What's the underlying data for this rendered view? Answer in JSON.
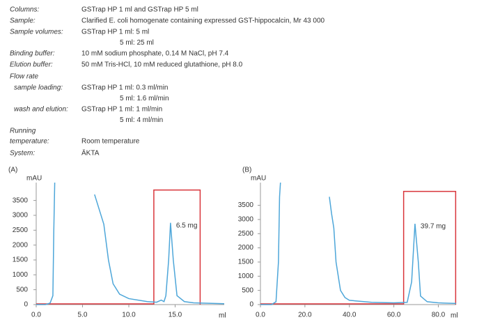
{
  "method": [
    {
      "label": "Columns:",
      "values": [
        "GSTrap HP 1 ml and GSTrap HP 5 ml"
      ]
    },
    {
      "label": "Sample:",
      "values": [
        "Clarified E. coli homogenate containing expressed GST-hippocalcin, Mr 43 000"
      ]
    },
    {
      "label": "Sample volumes:",
      "values": [
        "GSTrap HP 1 ml: 5 ml",
        "5 ml: 25 ml"
      ]
    },
    {
      "label": "Binding buffer:",
      "values": [
        "10 mM sodium phosphate, 0.14 M NaCl, pH 7.4"
      ]
    },
    {
      "label": "Elution buffer:",
      "values": [
        "50 mM Tris-HCl, 10 mM reduced glutathione, pH 8.0"
      ]
    },
    {
      "label": "Flow rate",
      "values": []
    },
    {
      "label": "sample loading:",
      "values": [
        "GSTrap HP 1 ml: 0.3 ml/min",
        "5 ml: 1.6 ml/min"
      ]
    },
    {
      "label": "wash and elution:",
      "values": [
        "GSTrap HP 1 ml: 1 ml/min",
        "5 ml: 4 ml/min"
      ]
    },
    {
      "label": "Running",
      "values": []
    },
    {
      "label": "temperature:",
      "values": [
        "Room temperature"
      ]
    },
    {
      "label": "System:",
      "values": [
        "ÄKTA"
      ]
    }
  ],
  "chart_data": [
    {
      "type": "line",
      "panel": "(A)",
      "y_label": "mAU",
      "x_label": "ml",
      "x": [
        0,
        1,
        1.5,
        1.8,
        1.9,
        2.0,
        5.9,
        6.3,
        7.0,
        7.3,
        7.8,
        8.3,
        9,
        10,
        12,
        13,
        13.5,
        13.8,
        14.0,
        14.3,
        14.5,
        14.8,
        15.2,
        16,
        17,
        20.3
      ],
      "series": [
        {
          "color": "#4da6d9",
          "values": [
            0,
            0,
            50,
            300,
            2500,
            4100,
            null,
            3700,
            3000,
            2700,
            1500,
            700,
            350,
            200,
            100,
            80,
            150,
            100,
            300,
            1500,
            2750,
            1500,
            300,
            100,
            60,
            30
          ]
        }
      ],
      "xlim": [
        0,
        20.3
      ],
      "ylim": [
        0,
        4100
      ],
      "xticks": [
        {
          "value": 0,
          "label": "0.0"
        },
        {
          "value": 5,
          "label": "5.0"
        },
        {
          "value": 10,
          "label": "10.0"
        },
        {
          "value": 15,
          "label": "15.0"
        }
      ],
      "yticks": [
        0,
        500,
        1000,
        1500,
        2000,
        2500,
        3000,
        3500
      ],
      "fraction": {
        "x": [
          12.7,
          17.7
        ],
        "top": 3850,
        "color": "#d9343a"
      },
      "annotation": "6.5 mg"
    },
    {
      "type": "line",
      "panel": "(B)",
      "y_label": "mAU",
      "x_label": "ml",
      "x": [
        0,
        5,
        7,
        8.1,
        8.6,
        9,
        30,
        31,
        32,
        33,
        34,
        36,
        38,
        40,
        50,
        60,
        66,
        68,
        69.5,
        71,
        72,
        75,
        80,
        88
      ],
      "series": [
        {
          "color": "#4da6d9",
          "values": [
            0,
            0,
            100,
            1500,
            3800,
            4300,
            null,
            3800,
            3200,
            2700,
            1500,
            500,
            250,
            150,
            80,
            60,
            80,
            800,
            2850,
            1500,
            300,
            100,
            60,
            40
          ]
        }
      ],
      "xlim": [
        0,
        88
      ],
      "ylim": [
        0,
        4300
      ],
      "xticks": [
        {
          "value": 0,
          "label": "0.0"
        },
        {
          "value": 20,
          "label": "20.0"
        },
        {
          "value": 40,
          "label": "40.0"
        },
        {
          "value": 60,
          "label": "60.0"
        },
        {
          "value": 80,
          "label": "80.0"
        }
      ],
      "yticks": [
        0,
        500,
        1000,
        1500,
        2000,
        2500,
        3000,
        3500
      ],
      "fraction": {
        "x": [
          64.4,
          87.8
        ],
        "top": 3990,
        "color": "#d9343a"
      },
      "annotation": "39.7 mg"
    }
  ]
}
